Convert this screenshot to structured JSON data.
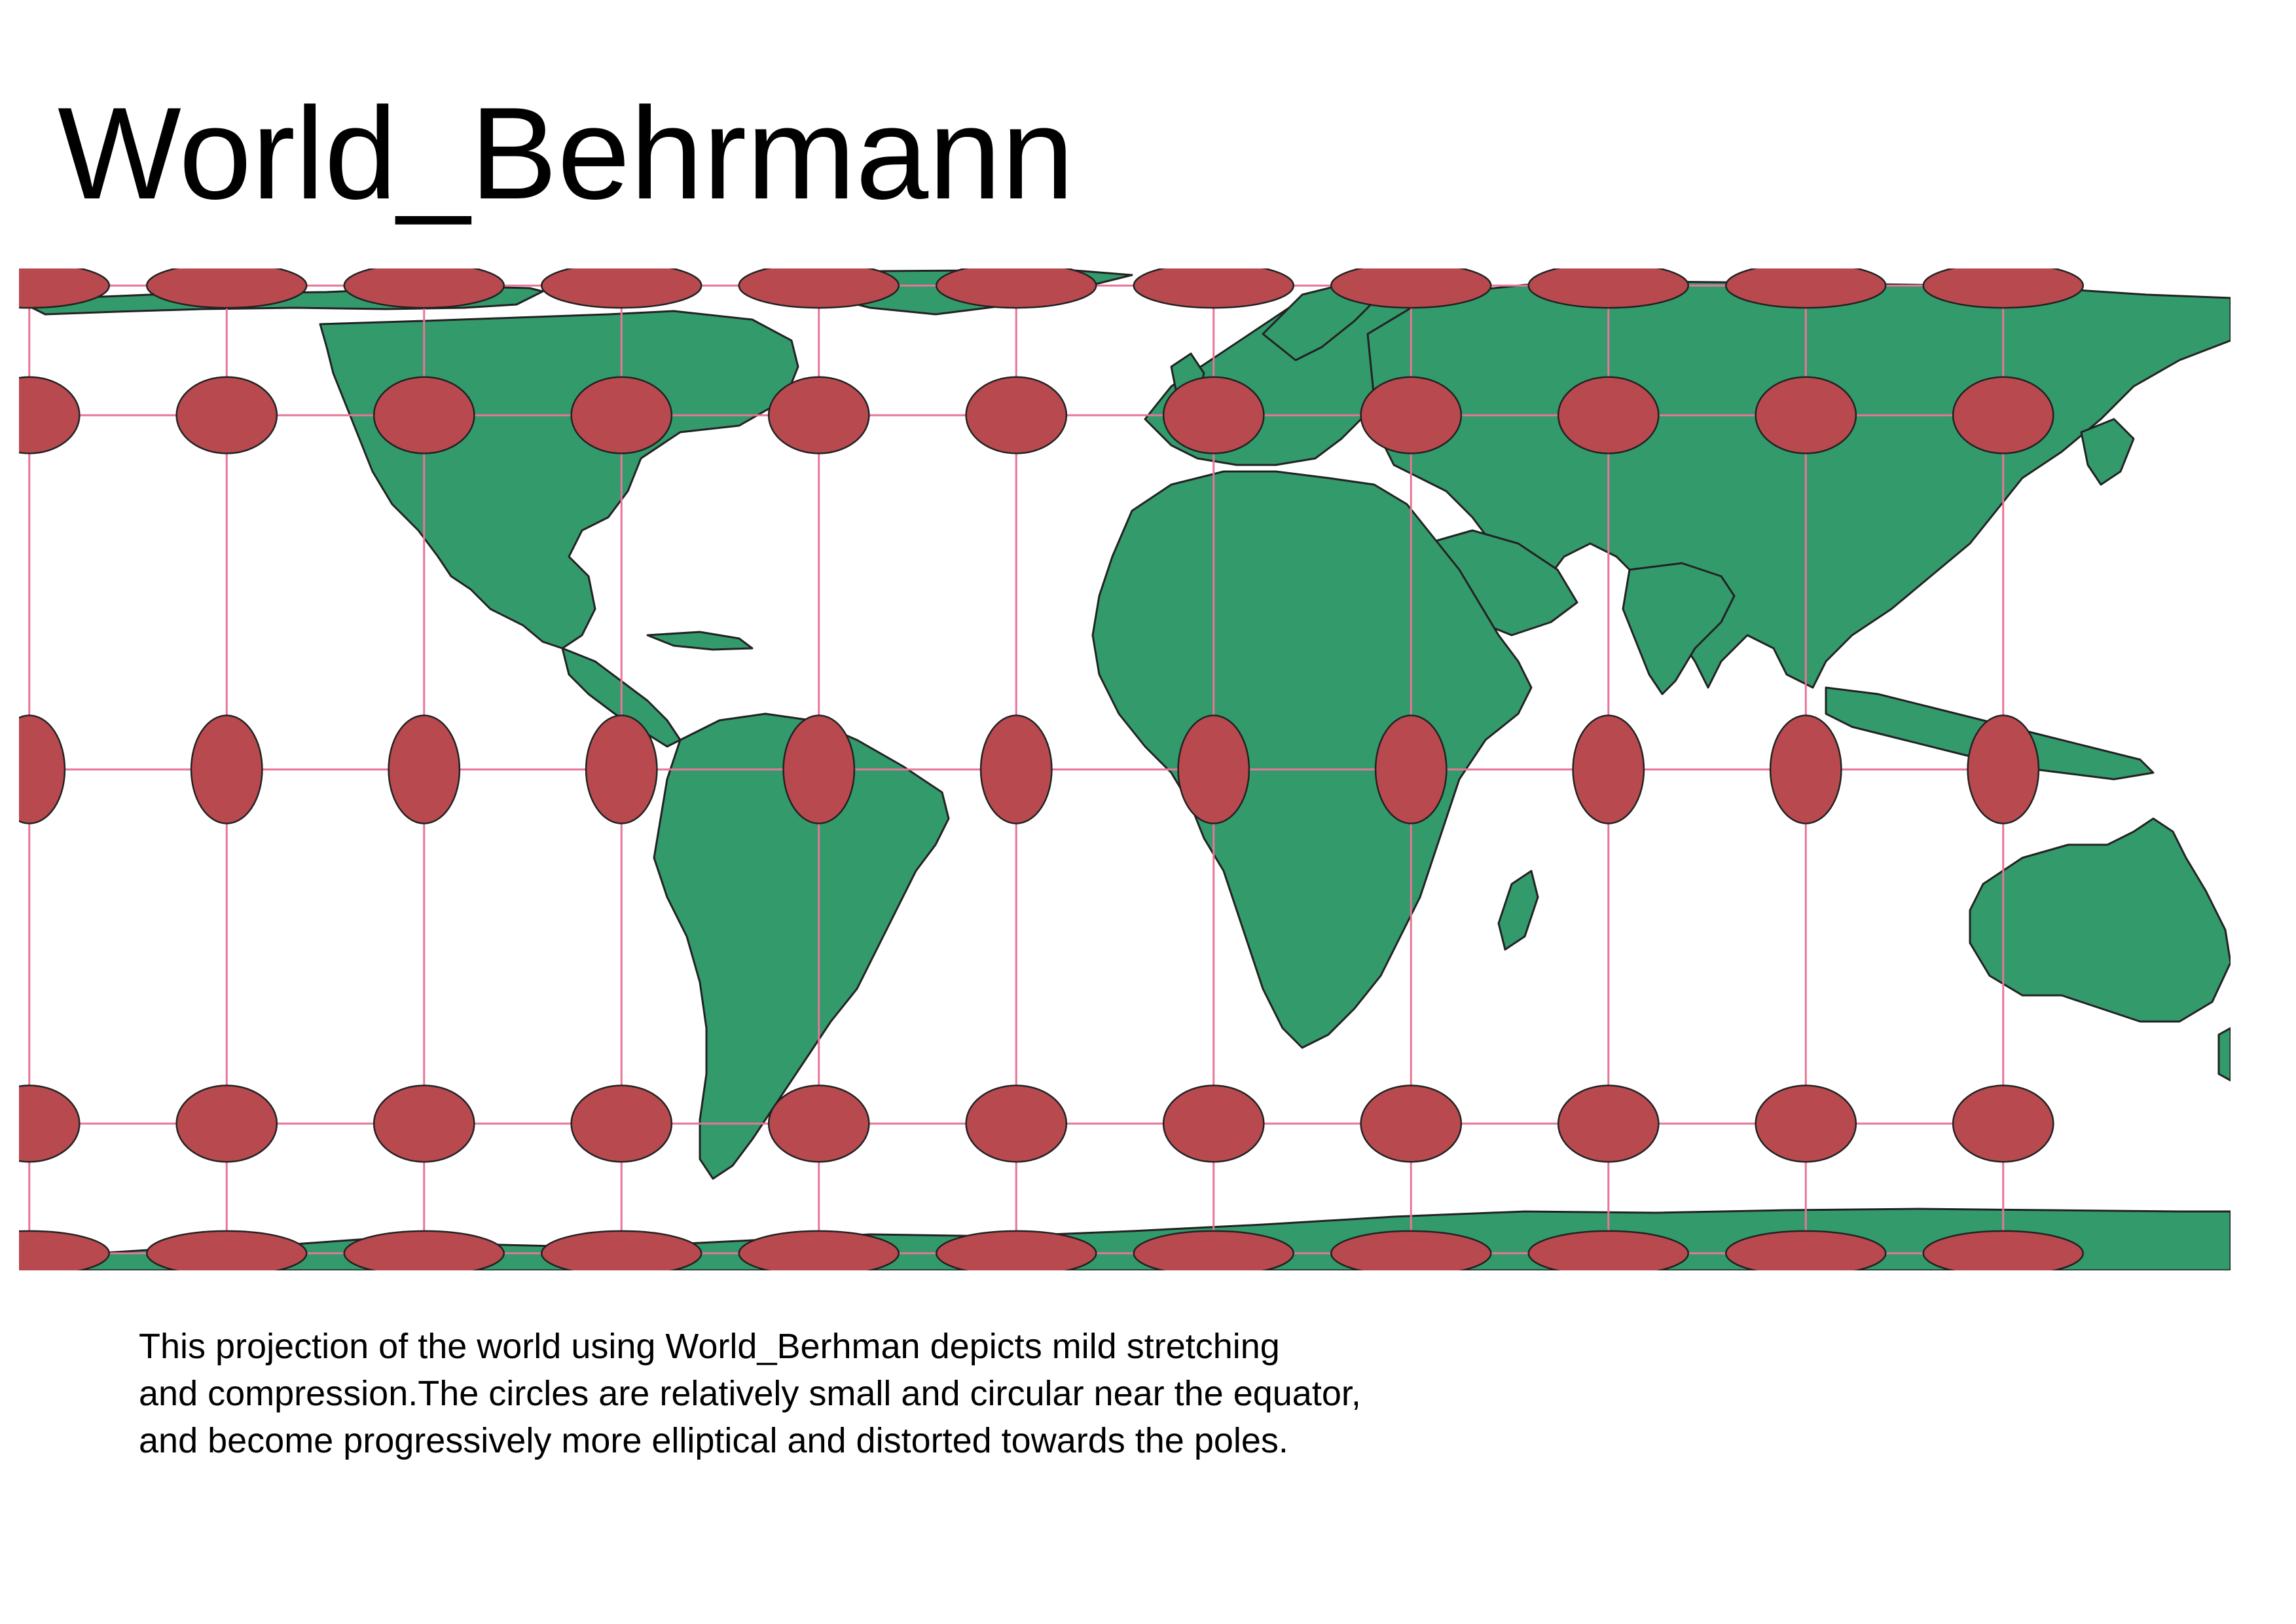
{
  "title": "World_Behrmann",
  "description_lines": [
    "This projection of the world using World_Berhman depicts mild stretching",
    "and compression.The circles are relatively small and circular near the equator,",
    "and become progressively more elliptical and distorted towards the poles."
  ],
  "map": {
    "projection": "World_Behrmann",
    "colors": {
      "land": "#339a6c",
      "land_outline": "#222222",
      "indicatrix_fill": "#b84a4f",
      "indicatrix_outline": "#222222",
      "graticule": "#e87598",
      "background": "#ffffff"
    },
    "indicatrix_longitudes": [
      -165,
      -135,
      -105,
      -75,
      -45,
      -15,
      15,
      45,
      75,
      105,
      135
    ],
    "indicatrix_latitudes": [
      75,
      45,
      0,
      -45,
      -75
    ]
  }
}
